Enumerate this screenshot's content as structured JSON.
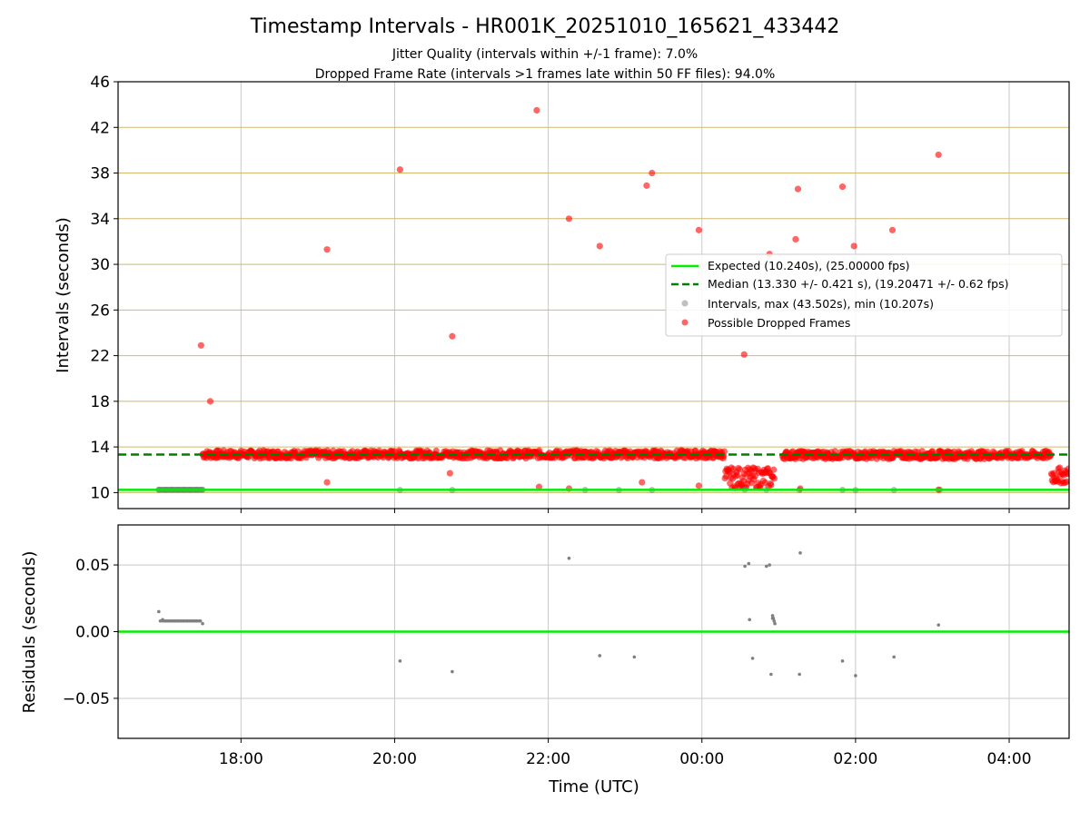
{
  "title": "Timestamp Intervals - HR001K_20251010_165621_433442",
  "subtitle_1": "Jitter Quality (intervals within +/-1 frame): 7.0%",
  "subtitle_2": "Dropped Frame Rate (intervals >1 frames late within 50 FF files): 94.0%",
  "colors": {
    "expected": "#00ee00",
    "median": "#008000",
    "intervals": "#808080",
    "dropped": "#ff0000",
    "hgrid_top": "#d2b96b",
    "grid": "#c8c8c8"
  },
  "chart_data": [
    {
      "type": "scatter",
      "panel": "intervals",
      "xlabel": "",
      "ylabel": "Intervals (seconds)",
      "x_unit": "hours since 00:00 UTC 2025-10-10",
      "xlim": [
        16.4,
        28.78
      ],
      "ylim": [
        8.6,
        46
      ],
      "yticks": [
        10,
        14,
        18,
        22,
        26,
        30,
        34,
        38,
        42,
        46
      ],
      "ytick_labels": [
        "10",
        "14",
        "18",
        "22",
        "26",
        "30",
        "34",
        "38",
        "42",
        "46"
      ],
      "grid": "on",
      "legend_position": "center-right",
      "legend": [
        "Expected (10.240s), (25.00000 fps)",
        "Median (13.330 +/- 0.421 s), (19.20471 +/- 0.62 fps)",
        "Intervals, max (43.502s), min (10.207s)",
        "Possible Dropped Frames"
      ],
      "expected_line": 10.24,
      "median_line": 13.33,
      "interval_points": {
        "x": [
          16.93,
          17.02,
          17.1,
          17.18,
          17.26,
          17.34,
          17.42,
          17.5,
          20.07,
          20.75,
          22.48,
          22.92,
          23.35,
          24.56,
          24.84,
          25.27,
          25.83,
          26.0,
          26.5,
          27.1
        ],
        "y": [
          10.25,
          10.24,
          10.25,
          10.24,
          10.25,
          10.24,
          10.25,
          10.25,
          10.22,
          10.22,
          10.23,
          10.22,
          10.22,
          10.25,
          10.25,
          10.22,
          10.23,
          10.21,
          10.22,
          10.25
        ]
      },
      "dropped_points": {
        "x": [
          17.48,
          17.6,
          19.12,
          20.07,
          20.75,
          21.85,
          22.27,
          22.67,
          23.28,
          23.35,
          23.96,
          24.55,
          24.88,
          25.22,
          25.25,
          25.83,
          25.98,
          26.48,
          27.08,
          19.12,
          20.72,
          23.22,
          23.96,
          21.88,
          22.27,
          25.28,
          27.08
        ],
        "y": [
          22.9,
          18.0,
          31.3,
          38.3,
          23.7,
          43.5,
          34.0,
          31.6,
          36.9,
          38.0,
          33.0,
          22.1,
          30.9,
          32.2,
          36.6,
          36.8,
          31.6,
          33.0,
          39.6,
          10.9,
          11.7,
          10.9,
          10.6,
          10.5,
          10.35,
          10.35,
          10.25
        ]
      },
      "dropped_band": [
        {
          "x0": 17.5,
          "x1": 24.3,
          "y": 13.35,
          "spread": 0.35
        },
        {
          "x0": 24.3,
          "x1": 24.95,
          "y": 11.3,
          "spread": 0.9
        },
        {
          "x0": 25.05,
          "x1": 28.55,
          "y": 13.3,
          "spread": 0.35
        },
        {
          "x0": 28.55,
          "x1": 28.78,
          "y": 11.5,
          "spread": 0.7
        }
      ]
    },
    {
      "type": "scatter",
      "panel": "residuals",
      "xlabel": "Time (UTC)",
      "ylabel": "Residuals (seconds)",
      "x_unit": "hours since 00:00 UTC 2025-10-10",
      "xlim": [
        16.4,
        28.78
      ],
      "ylim": [
        -0.08,
        0.08
      ],
      "yticks": [
        0.05,
        0.0,
        -0.05
      ],
      "ytick_labels": [
        "0.05",
        "0.00",
        "−0.05"
      ],
      "xticks": [
        18,
        20,
        22,
        24,
        26,
        28
      ],
      "xtick_labels": [
        "18:00",
        "20:00",
        "22:00",
        "00:00",
        "02:00",
        "04:00"
      ],
      "grid": "on",
      "zero_line": 0.0,
      "points": {
        "x": [
          16.93,
          16.95,
          16.98,
          17.02,
          17.06,
          17.1,
          17.14,
          17.18,
          17.22,
          17.26,
          17.3,
          17.34,
          17.38,
          17.42,
          17.46,
          17.5,
          20.07,
          20.75,
          22.27,
          22.67,
          23.12,
          24.56,
          24.61,
          24.84,
          24.88,
          24.92,
          24.93,
          24.94,
          24.95,
          25.27,
          25.28,
          25.83,
          26.0,
          26.5,
          27.08,
          24.62,
          24.9,
          24.66,
          24.92
        ],
        "y": [
          0.015,
          0.008,
          0.009,
          0.008,
          0.008,
          0.008,
          0.008,
          0.008,
          0.008,
          0.008,
          0.008,
          0.008,
          0.008,
          0.008,
          0.008,
          0.006,
          -0.022,
          -0.03,
          0.055,
          -0.018,
          -0.019,
          0.049,
          0.051,
          0.049,
          0.05,
          0.012,
          0.01,
          0.008,
          0.006,
          -0.032,
          0.059,
          -0.022,
          -0.033,
          -0.019,
          0.005,
          0.009,
          -0.032,
          -0.02,
          0.01
        ]
      }
    }
  ]
}
